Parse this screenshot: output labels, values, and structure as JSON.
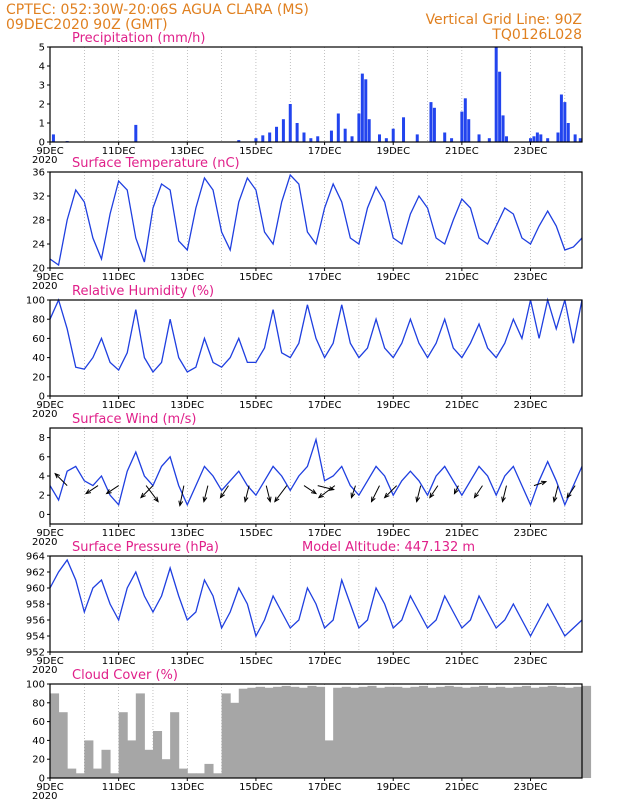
{
  "header": {
    "line1_left": "CPTEC:   052:30W-20:06S  AGUA CLARA (MS)",
    "line2_left": "09DEC2020 90Z (GMT)",
    "line1_right": "Vertical Grid Line: 90Z",
    "line2_right": "TQ0126L028"
  },
  "x_labels": [
    "9DEC",
    "11DEC",
    "13DEC",
    "15DEC",
    "17DEC",
    "19DEC",
    "21DEC",
    "23DEC"
  ],
  "x_label_days": [
    0,
    2,
    4,
    6,
    8,
    10,
    12,
    14
  ],
  "x_extra_label": "2020",
  "colors": {
    "line": "#1f3fe0",
    "bars": "#2244ee",
    "cloud": "#a6a6a6",
    "title": "#e0208a",
    "header": "#e08020"
  },
  "chart_data": [
    {
      "type": "bar",
      "title": "Precipitation (mm/h)",
      "ylim": [
        0,
        5
      ],
      "yticks": [
        0,
        1,
        2,
        3,
        4,
        5
      ],
      "xlim_days": [
        0,
        15.5
      ],
      "series": [
        {
          "values_by_day": [
            [
              0.1,
              0.4
            ],
            [
              0.5,
              0.05
            ],
            [
              2.5,
              0.9
            ],
            [
              5.5,
              0.1
            ],
            [
              6.0,
              0.2
            ],
            [
              6.2,
              0.35
            ],
            [
              6.4,
              0.5
            ],
            [
              6.6,
              0.8
            ],
            [
              6.8,
              1.2
            ],
            [
              7.0,
              2.0
            ],
            [
              7.2,
              1.0
            ],
            [
              7.4,
              0.5
            ],
            [
              7.6,
              0.2
            ],
            [
              7.8,
              0.3
            ],
            [
              8.2,
              0.6
            ],
            [
              8.4,
              1.5
            ],
            [
              8.6,
              0.7
            ],
            [
              8.8,
              0.3
            ],
            [
              9.0,
              1.5
            ],
            [
              9.1,
              3.6
            ],
            [
              9.2,
              3.3
            ],
            [
              9.3,
              1.2
            ],
            [
              9.6,
              0.4
            ],
            [
              9.8,
              0.2
            ],
            [
              10.0,
              0.7
            ],
            [
              10.3,
              1.3
            ],
            [
              10.7,
              0.4
            ],
            [
              11.1,
              2.1
            ],
            [
              11.2,
              1.8
            ],
            [
              11.5,
              0.5
            ],
            [
              11.7,
              0.2
            ],
            [
              12.0,
              1.6
            ],
            [
              12.1,
              2.3
            ],
            [
              12.2,
              1.2
            ],
            [
              12.5,
              0.4
            ],
            [
              12.8,
              0.2
            ],
            [
              13.0,
              5.0
            ],
            [
              13.1,
              3.7
            ],
            [
              13.2,
              1.4
            ],
            [
              13.3,
              0.3
            ],
            [
              14.0,
              0.2
            ],
            [
              14.1,
              0.3
            ],
            [
              14.2,
              0.5
            ],
            [
              14.3,
              0.4
            ],
            [
              14.5,
              0.2
            ],
            [
              14.8,
              0.5
            ],
            [
              14.9,
              2.5
            ],
            [
              15.0,
              2.1
            ],
            [
              15.1,
              1.0
            ],
            [
              15.3,
              0.4
            ],
            [
              15.45,
              0.2
            ]
          ]
        }
      ]
    },
    {
      "type": "line",
      "title": "Surface Temperature (nC)",
      "ylim": [
        20,
        36
      ],
      "yticks": [
        20,
        24,
        28,
        32,
        36
      ],
      "series": [
        {
          "x_days": [
            0,
            0.25,
            0.5,
            0.75,
            1,
            1.25,
            1.5,
            1.75,
            2,
            2.25,
            2.5,
            2.75,
            3,
            3.25,
            3.5,
            3.75,
            4,
            4.25,
            4.5,
            4.75,
            5,
            5.25,
            5.5,
            5.75,
            6,
            6.25,
            6.5,
            6.75,
            7,
            7.25,
            7.5,
            7.75,
            8,
            8.25,
            8.5,
            8.75,
            9,
            9.25,
            9.5,
            9.75,
            10,
            10.25,
            10.5,
            10.75,
            11,
            11.25,
            11.5,
            11.75,
            12,
            12.25,
            12.5,
            12.75,
            13,
            13.25,
            13.5,
            13.75,
            14,
            14.25,
            14.5,
            14.75,
            15,
            15.25,
            15.5
          ],
          "values": [
            21.5,
            20.5,
            28,
            33,
            31,
            25,
            21.5,
            29,
            34.5,
            33,
            25,
            21,
            30,
            34,
            33,
            24.5,
            23,
            30,
            35,
            33,
            26,
            23,
            31,
            35,
            33,
            26,
            24,
            31,
            35.5,
            34,
            26,
            24,
            30,
            34,
            31,
            25,
            24,
            30,
            33.5,
            31,
            25,
            24,
            29,
            32,
            30,
            25,
            24,
            28,
            31.5,
            30,
            25,
            24,
            27,
            30,
            29,
            25,
            24,
            27,
            29.5,
            27,
            23,
            23.5,
            25
          ]
        }
      ]
    },
    {
      "type": "line",
      "title": "Relative Humidity (%)",
      "ylim": [
        0,
        100
      ],
      "yticks": [
        0,
        20,
        40,
        60,
        80,
        100
      ],
      "series": [
        {
          "x_days": [
            0,
            0.25,
            0.5,
            0.75,
            1,
            1.25,
            1.5,
            1.75,
            2,
            2.25,
            2.5,
            2.75,
            3,
            3.25,
            3.5,
            3.75,
            4,
            4.25,
            4.5,
            4.75,
            5,
            5.25,
            5.5,
            5.75,
            6,
            6.25,
            6.5,
            6.75,
            7,
            7.25,
            7.5,
            7.75,
            8,
            8.25,
            8.5,
            8.75,
            9,
            9.25,
            9.5,
            9.75,
            10,
            10.25,
            10.5,
            10.75,
            11,
            11.25,
            11.5,
            11.75,
            12,
            12.25,
            12.5,
            12.75,
            13,
            13.25,
            13.5,
            13.75,
            14,
            14.25,
            14.5,
            14.75,
            15,
            15.25,
            15.5
          ],
          "values": [
            80,
            100,
            70,
            30,
            28,
            40,
            60,
            35,
            27,
            45,
            90,
            40,
            25,
            35,
            80,
            40,
            25,
            30,
            60,
            35,
            30,
            40,
            60,
            35,
            35,
            50,
            90,
            45,
            40,
            55,
            95,
            60,
            40,
            55,
            95,
            55,
            40,
            50,
            80,
            50,
            40,
            55,
            80,
            55,
            40,
            55,
            80,
            50,
            40,
            55,
            75,
            50,
            40,
            55,
            80,
            60,
            100,
            60,
            100,
            70,
            100,
            55,
            100
          ]
        }
      ]
    },
    {
      "type": "line",
      "title": "Surface Wind (m/s)",
      "ylim": [
        -1,
        9
      ],
      "yticks": [
        0,
        2,
        4,
        6,
        8
      ],
      "series": [
        {
          "x_days": [
            0,
            0.25,
            0.5,
            0.75,
            1,
            1.25,
            1.5,
            1.75,
            2,
            2.25,
            2.5,
            2.75,
            3,
            3.25,
            3.5,
            3.75,
            4,
            4.25,
            4.5,
            4.75,
            5,
            5.25,
            5.5,
            5.75,
            6,
            6.25,
            6.5,
            6.75,
            7,
            7.25,
            7.5,
            7.75,
            8,
            8.25,
            8.5,
            8.75,
            9,
            9.25,
            9.5,
            9.75,
            10,
            10.25,
            10.5,
            10.75,
            11,
            11.25,
            11.5,
            11.75,
            12,
            12.25,
            12.5,
            12.75,
            13,
            13.25,
            13.5,
            13.75,
            14,
            14.25,
            14.5,
            14.75,
            15,
            15.25,
            15.5
          ],
          "values": [
            3,
            1.5,
            4.5,
            5,
            3.5,
            3,
            4,
            2,
            1,
            4.5,
            6.5,
            4,
            3,
            5,
            6,
            3,
            1,
            3,
            5,
            4,
            2.5,
            3.5,
            4.5,
            3,
            2,
            3.5,
            5,
            4,
            2.5,
            4,
            5,
            7.8,
            3.5,
            4,
            5,
            3,
            2,
            3.5,
            5,
            4,
            2,
            3.5,
            4.5,
            3.5,
            2,
            4,
            5,
            3.5,
            2,
            3.5,
            5,
            4,
            2,
            4,
            5,
            3,
            1,
            3.5,
            5.5,
            3.5,
            1,
            3,
            5
          ]
        }
      ],
      "arrows": [
        [
          0.5,
          -0.3,
          0.3
        ],
        [
          1.4,
          -0.3,
          -0.2
        ],
        [
          2.0,
          -0.3,
          -0.2
        ],
        [
          2.8,
          0.3,
          -0.4
        ],
        [
          3.0,
          -0.3,
          -0.3
        ],
        [
          3.9,
          -0.1,
          -0.5
        ],
        [
          4.6,
          -0.1,
          -0.4
        ],
        [
          5.2,
          -0.2,
          -0.3
        ],
        [
          5.8,
          -0.1,
          -0.4
        ],
        [
          6.3,
          0.1,
          -0.4
        ],
        [
          6.9,
          -0.3,
          -0.4
        ],
        [
          7.4,
          0.3,
          -0.2
        ],
        [
          7.8,
          0.4,
          -0.1
        ],
        [
          8.3,
          -0.4,
          -0.3
        ],
        [
          8.9,
          -0.1,
          -0.3
        ],
        [
          9.6,
          -0.2,
          -0.4
        ],
        [
          10.1,
          -0.3,
          -0.3
        ],
        [
          10.8,
          -0.1,
          -0.4
        ],
        [
          11.3,
          -0.2,
          -0.3
        ],
        [
          11.9,
          -0.1,
          -0.2
        ],
        [
          12.6,
          -0.2,
          -0.3
        ],
        [
          13.3,
          -0.1,
          -0.4
        ],
        [
          14.1,
          0.3,
          0.1
        ],
        [
          14.8,
          -0.1,
          -0.4
        ],
        [
          15.3,
          -0.2,
          -0.3
        ]
      ]
    },
    {
      "type": "line",
      "title": "Surface Pressure (hPa)",
      "annotation": "Model Altitude: 447.132  m",
      "ylim": [
        952,
        964
      ],
      "yticks": [
        952,
        954,
        956,
        958,
        960,
        962,
        964
      ],
      "series": [
        {
          "x_days": [
            0,
            0.25,
            0.5,
            0.75,
            1,
            1.25,
            1.5,
            1.75,
            2,
            2.25,
            2.5,
            2.75,
            3,
            3.25,
            3.5,
            3.75,
            4,
            4.25,
            4.5,
            4.75,
            5,
            5.25,
            5.5,
            5.75,
            6,
            6.25,
            6.5,
            6.75,
            7,
            7.25,
            7.5,
            7.75,
            8,
            8.25,
            8.5,
            8.75,
            9,
            9.25,
            9.5,
            9.75,
            10,
            10.25,
            10.5,
            10.75,
            11,
            11.25,
            11.5,
            11.75,
            12,
            12.25,
            12.5,
            12.75,
            13,
            13.25,
            13.5,
            13.75,
            14,
            14.25,
            14.5,
            14.75,
            15,
            15.25,
            15.5
          ],
          "values": [
            960,
            962,
            963.5,
            961,
            957,
            960,
            961,
            958,
            956,
            960,
            962,
            959,
            957,
            959,
            962.5,
            959,
            956,
            957,
            961,
            959,
            955,
            957,
            960,
            958,
            954,
            956,
            959,
            957,
            955,
            956,
            960,
            958,
            955,
            956,
            961,
            958,
            955,
            956,
            960,
            958,
            955,
            956,
            959,
            957,
            955,
            956,
            959,
            957,
            955,
            956,
            959,
            957,
            955,
            956,
            958,
            956,
            954,
            956,
            958,
            956,
            954,
            955,
            956
          ]
        }
      ]
    },
    {
      "type": "area",
      "title": "Cloud Cover (%)",
      "ylim": [
        0,
        100
      ],
      "yticks": [
        0,
        20,
        40,
        60,
        80,
        100
      ],
      "series": [
        {
          "x_days": [
            0,
            0.25,
            0.5,
            0.75,
            1,
            1.25,
            1.5,
            1.75,
            2,
            2.25,
            2.5,
            2.75,
            3,
            3.25,
            3.5,
            3.75,
            4,
            4.25,
            4.5,
            4.75,
            5,
            5.25,
            5.5,
            5.75,
            6,
            6.25,
            6.5,
            6.75,
            7,
            7.25,
            7.5,
            7.75,
            8,
            8.25,
            8.5,
            8.75,
            9,
            9.25,
            9.5,
            9.75,
            10,
            10.25,
            10.5,
            10.75,
            11,
            11.25,
            11.5,
            11.75,
            12,
            12.25,
            12.5,
            12.75,
            13,
            13.25,
            13.5,
            13.75,
            14,
            14.25,
            14.5,
            14.75,
            15,
            15.25,
            15.5
          ],
          "values": [
            90,
            70,
            10,
            5,
            40,
            10,
            30,
            5,
            70,
            40,
            90,
            30,
            50,
            20,
            70,
            10,
            5,
            5,
            15,
            5,
            90,
            80,
            95,
            96,
            97,
            96,
            97,
            98,
            97,
            96,
            98,
            97,
            40,
            96,
            97,
            96,
            97,
            98,
            96,
            97,
            97,
            96,
            97,
            98,
            96,
            97,
            98,
            97,
            96,
            97,
            98,
            96,
            97,
            96,
            97,
            98,
            96,
            97,
            98,
            97,
            96,
            97,
            98
          ]
        }
      ]
    }
  ]
}
